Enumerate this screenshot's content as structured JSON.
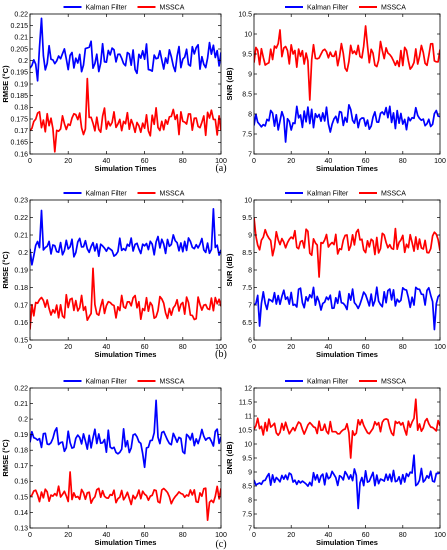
{
  "colors": {
    "kalman": "#0000ff",
    "mssca": "#ff0000",
    "axis": "#000000"
  },
  "captions": [
    "(a)",
    "(b)",
    "(c)"
  ],
  "chart_data": [
    {
      "type": "line",
      "panel": "a-left",
      "xlabel": "Simulation Times",
      "ylabel": "RMSE (°C)",
      "xlim": [
        0,
        100
      ],
      "ylim": [
        0.155,
        0.22
      ],
      "xticks": [
        "0",
        "20",
        "40",
        "60",
        "80",
        "100"
      ],
      "yticks": [
        "0.16",
        "0.165",
        "0.17",
        "0.175",
        "0.18",
        "0.185",
        "0.19",
        "0.195",
        "0.2",
        "0.205",
        "0.21",
        "0.215",
        "0.22"
      ],
      "legend": [
        "Kalman Filter",
        "MSSCA"
      ],
      "legend_position": "top-center",
      "series": [
        {
          "name": "Kalman Filter",
          "mean": 0.2,
          "amp": 0.008,
          "seed": 11,
          "spikes": [
            [
              6,
              0.218
            ],
            [
              4,
              0.189
            ]
          ]
        },
        {
          "name": "MSSCA",
          "mean": 0.17,
          "amp": 0.007,
          "seed": 23,
          "spikes": [
            [
              30,
              0.19
            ],
            [
              13,
              0.156
            ]
          ]
        }
      ]
    },
    {
      "type": "line",
      "panel": "a-right",
      "xlabel": "Simulation Times",
      "ylabel": "SNR (dB)",
      "xlim": [
        0,
        100
      ],
      "ylim": [
        7,
        10.5
      ],
      "xticks": [
        "0",
        "20",
        "40",
        "60",
        "80",
        "100"
      ],
      "yticks": [
        "7",
        "7.5",
        "8",
        "8.5",
        "9",
        "9.5",
        "10",
        "10.5"
      ],
      "legend": [
        "Kalman Filter",
        "MSSCA"
      ],
      "legend_position": "top-center",
      "series": [
        {
          "name": "Kalman Filter",
          "mean": 7.9,
          "amp": 0.35,
          "seed": 37,
          "spikes": [
            [
              17,
              7.3
            ]
          ]
        },
        {
          "name": "MSSCA",
          "mean": 9.45,
          "amp": 0.4,
          "seed": 41,
          "spikes": [
            [
              14,
              10.1
            ],
            [
              30,
              8.35
            ],
            [
              60,
              10.2
            ]
          ]
        }
      ]
    },
    {
      "type": "line",
      "panel": "b-left",
      "xlabel": "Simulation Times",
      "ylabel": "RMSE (°C)",
      "xlim": [
        0,
        100
      ],
      "ylim": [
        0.15,
        0.23
      ],
      "xticks": [
        "0",
        "20",
        "40",
        "60",
        "80",
        "100"
      ],
      "yticks": [
        "0.15",
        "0.16",
        "0.17",
        "0.18",
        "0.19",
        "0.2",
        "0.21",
        "0.22",
        "0.23"
      ],
      "legend": [
        "Kalman Filter",
        "MSSCA"
      ],
      "legend_position": "top-center",
      "series": [
        {
          "name": "Kalman Filter",
          "mean": 0.204,
          "amp": 0.007,
          "seed": 53,
          "spikes": [
            [
              6,
              0.224
            ],
            [
              96,
              0.225
            ],
            [
              1,
              0.193
            ]
          ]
        },
        {
          "name": "MSSCA",
          "mean": 0.169,
          "amp": 0.008,
          "seed": 59,
          "spikes": [
            [
              33,
              0.191
            ],
            [
              0,
              0.156
            ]
          ]
        }
      ]
    },
    {
      "type": "line",
      "panel": "b-right",
      "xlabel": "Simulation Times",
      "ylabel": "SNR (dB)",
      "xlim": [
        0,
        100
      ],
      "ylim": [
        6,
        10
      ],
      "xticks": [
        "0",
        "20",
        "40",
        "60",
        "80",
        "100"
      ],
      "yticks": [
        "6",
        "6.5",
        "7",
        "7.5",
        "8",
        "8.5",
        "9",
        "9.5",
        "10"
      ],
      "legend": [
        "Kalman Filter",
        "MSSCA"
      ],
      "legend_position": "top-center",
      "series": [
        {
          "name": "Kalman Filter",
          "mean": 7.2,
          "amp": 0.35,
          "seed": 67,
          "spikes": [
            [
              3,
              6.4
            ],
            [
              97,
              6.3
            ]
          ]
        },
        {
          "name": "MSSCA",
          "mean": 8.8,
          "amp": 0.4,
          "seed": 71,
          "spikes": [
            [
              0,
              9.5
            ],
            [
              35,
              7.8
            ]
          ]
        }
      ]
    },
    {
      "type": "line",
      "panel": "c-left",
      "xlabel": "Simulation Times",
      "ylabel": "RMSE (°C)",
      "xlim": [
        0,
        100
      ],
      "ylim": [
        0.13,
        0.22
      ],
      "xticks": [
        "0",
        "20",
        "40",
        "60",
        "80",
        "100"
      ],
      "yticks": [
        "0.13",
        "0.14",
        "0.15",
        "0.16",
        "0.17",
        "0.18",
        "0.19",
        "0.2",
        "0.21",
        "0.22"
      ],
      "legend": [
        "Kalman Filter",
        "MSSCA"
      ],
      "legend_position": "top-center",
      "series": [
        {
          "name": "Kalman Filter",
          "mean": 0.186,
          "amp": 0.009,
          "seed": 83,
          "spikes": [
            [
              66,
              0.212
            ],
            [
              60,
              0.169
            ]
          ]
        },
        {
          "name": "MSSCA",
          "mean": 0.151,
          "amp": 0.006,
          "seed": 89,
          "spikes": [
            [
              21,
              0.166
            ],
            [
              93,
              0.135
            ]
          ]
        }
      ]
    },
    {
      "type": "line",
      "panel": "c-right",
      "xlabel": "Simulation Times",
      "ylabel": "SNR (dB)",
      "xlim": [
        0,
        100
      ],
      "ylim": [
        7,
        12
      ],
      "xticks": [
        "0",
        "20",
        "40",
        "60",
        "80",
        "100"
      ],
      "yticks": [
        "7",
        "7.5",
        "8",
        "8.5",
        "9",
        "9.5",
        "10",
        "10.5",
        "11",
        "11.5",
        "12"
      ],
      "legend": [
        "Kalman Filter",
        "MSSCA"
      ],
      "legend_position": "top-center",
      "series": [
        {
          "name": "Kalman Filter",
          "mean": 8.8,
          "amp": 0.35,
          "seed": 97,
          "spikes": [
            [
              56,
              7.7
            ],
            [
              86,
              9.6
            ]
          ]
        },
        {
          "name": "MSSCA",
          "mean": 10.6,
          "amp": 0.35,
          "seed": 101,
          "spikes": [
            [
              52,
              9.5
            ],
            [
              87,
              11.6
            ]
          ]
        }
      ]
    }
  ]
}
